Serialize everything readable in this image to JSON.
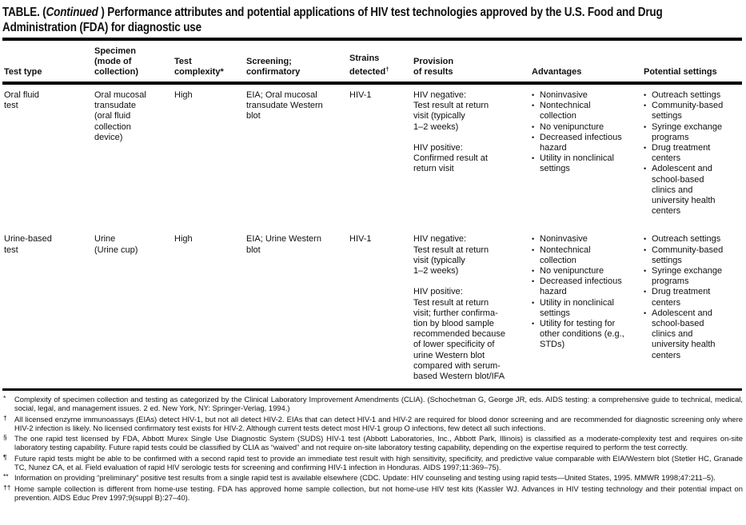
{
  "title": {
    "prefix": "TABLE. (",
    "continued": "Continued",
    "suffix": " ) Performance attributes and potential applications of HIV test technologies approved by the U.S. Food and Drug",
    "line2": "Administration (FDA) for diagnostic use"
  },
  "table": {
    "bullet": "•",
    "headers": {
      "test_type": "Test type",
      "specimen": "Specimen\n(mode of\ncollection)",
      "complexity": "Test\ncomplexity*",
      "screening": "Screening;\nconfirmatory",
      "strains": "Strains\ndetected",
      "strains_sup": "†",
      "provision": "Provision\nof results",
      "advantages": "Advantages",
      "settings": "Potential settings"
    },
    "rows": [
      {
        "test_type": "Oral fluid\ntest",
        "specimen": "Oral mucosal\ntransudate\n(oral fluid\ncollection\ndevice)",
        "complexity": "High",
        "screening": "EIA; Oral mucosal\ntransudate Western\nblot",
        "strains": "HIV-1",
        "provision": "HIV negative:\nTest result at return\nvisit  (typically\n1–2 weeks)\n\nHIV positive:\nConfirmed result at\nreturn visit",
        "advantages": [
          "Noninvasive",
          "Nontechnical\ncollection",
          "No venipuncture",
          "Decreased infectious\nhazard",
          "Utility in nonclinical\nsettings"
        ],
        "settings": [
          "Outreach settings",
          "Community-based\nsettings",
          "Syringe exchange\nprograms",
          "Drug treatment\ncenters",
          "Adolescent and\nschool-based\nclinics and\nuniversity health\ncenters"
        ]
      },
      {
        "test_type": "Urine-based\ntest",
        "specimen": "Urine\n(Urine cup)",
        "complexity": "High",
        "screening": "EIA; Urine Western\nblot",
        "strains": "HIV-1",
        "provision": "HIV negative:\nTest result at return\nvisit  (typically\n1–2 weeks)\n\nHIV positive:\nTest result at return\nvisit; further confirma-\ntion by blood sample\nrecommended because\nof lower specificity of\nurine Western blot\ncompared with serum-\nbased Western blot/IFA",
        "advantages": [
          "Noninvasive",
          "Nontechnical\ncollection",
          "No venipuncture",
          "Decreased infectious\nhazard",
          "Utility in nonclinical\nsettings",
          "Utility for testing for\nother conditions (e.g.,\nSTDs)"
        ],
        "settings": [
          "Outreach settings",
          "Community-based\nsettings",
          "Syringe exchange\nprograms",
          "Drug treatment\ncenters",
          "Adolescent and\nschool-based\nclinics and\nuniversity health\ncenters"
        ]
      }
    ]
  },
  "footnotes": [
    {
      "marker": "*",
      "text": "Complexity of specimen collection and testing as categorized by the Clinical Laboratory Improvement Amendments (CLIA). (Schochetman G, George JR, eds. AIDS testing: a comprehensive guide to technical, medical, social, legal, and management issues. 2 ed. New York, NY: Springer-Verlag, 1994.)"
    },
    {
      "marker": "†",
      "text": "All licensed enzyme immunoassays (EIAs) detect HIV-1, but not all detect HIV-2. EIAs that can detect HIV-1 and HIV-2 are required for blood donor screening and are recommended for diagnostic screening only where HIV-2 infection is likely. No licensed confirmatory test exists for HIV-2. Although current tests detect most HIV-1 group O infections, few detect all such infections."
    },
    {
      "marker": "§",
      "text": "The one rapid test licensed by FDA, Abbott Murex Single Use Diagnostic System (SUDS) HIV-1 test (Abbott Laboratories, Inc., Abbott Park, Illinois) is classified as a moderate-complexity test and requires on-site laboratory testing capability. Future rapid tests could be classified by CLIA as “waived” and not require on-site laboratory testing capability, depending on the expertise required to perform the test correctly."
    },
    {
      "marker": "¶",
      "text": "Future rapid tests might be able to be confirmed with a second rapid test to provide an immediate test result with high sensitivity, specificity, and predictive value comparable with EIA/Western blot (Stetler HC, Granade TC, Nunez CA, et al. Field evaluation of rapid HIV serologic tests for screening and confirming HIV-1 infection in Honduras. AIDS 1997;11:369–75)."
    },
    {
      "marker": "**",
      "text": "Information on providing “preliminary” positive test results from a single rapid test is available elsewhere (CDC. Update: HIV counseling and testing using rapid tests—United States, 1995. MMWR 1998;47:211–5)."
    },
    {
      "marker": "††",
      "text": "Home sample collection is different from home-use testing. FDA has approved home sample collection, but not home-use HIV test kits (Kassler WJ. Advances in HIV testing technology and their potential impact on prevention. AIDS Educ Prev 1997;9(suppl B):27–40)."
    }
  ]
}
